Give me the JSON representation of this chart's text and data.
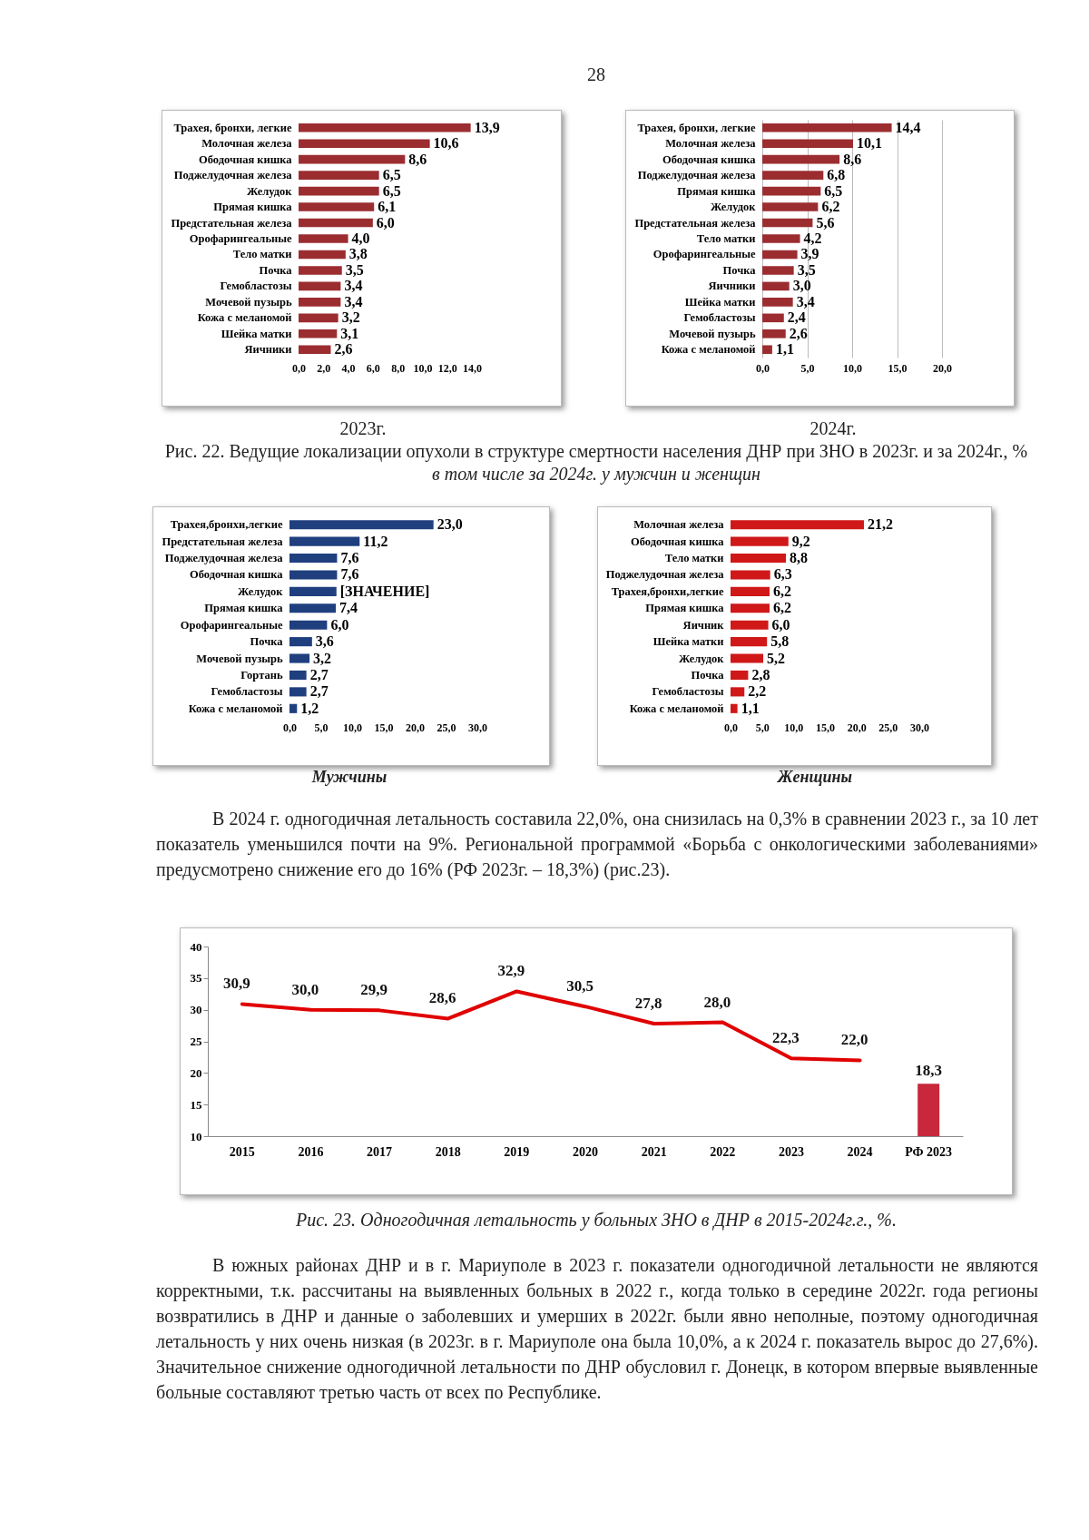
{
  "chart_data": [
    {
      "type": "bar",
      "orientation": "horizontal",
      "title": "2023г.",
      "color": "#9b2d30",
      "annotations": [
        "28",
        "Рис. 22. Ведущие локализации опухоли в структуре смертности населения ДНР при ЗНО в 2023г. и за 2024г., %",
        "в том числе за 2024г. у мужчин и женщин"
      ],
      "categories": [
        "Трахея, бронхи, легкие",
        "Молочная железа",
        "Ободочная кишка",
        "Поджелудочная железа",
        "Желудок",
        "Прямая кишка",
        "Предстательная железа",
        "Орофарингеальные",
        "Тело матки",
        "Почка",
        "Гемобластозы",
        "Мочевой пузырь",
        "Кожа с меланомой",
        "Шейка матки",
        "Яичники"
      ],
      "values": [
        13.9,
        10.6,
        8.6,
        6.5,
        6.5,
        6.1,
        6.0,
        4.0,
        3.8,
        3.5,
        3.4,
        3.4,
        3.2,
        3.1,
        2.6
      ],
      "value_labels": [
        "13,9",
        "10,6",
        "8,6",
        "6,5",
        "6,5",
        "6,1",
        "6,0",
        "4,0",
        "3,8",
        "3,5",
        "3,4",
        "3,4",
        "3,2",
        "3,1",
        "2,6"
      ],
      "xlim": [
        0,
        14
      ],
      "xticks": [
        {
          "value": 0,
          "label": "0,0"
        },
        {
          "value": 2,
          "label": "2,0"
        },
        {
          "value": 4,
          "label": "4,0"
        },
        {
          "value": 6,
          "label": "6,0"
        },
        {
          "value": 8,
          "label": "8,0"
        },
        {
          "value": 10,
          "label": "10,0"
        },
        {
          "value": 12,
          "label": "12,0"
        },
        {
          "value": 14,
          "label": "14,0"
        }
      ]
    },
    {
      "type": "bar",
      "orientation": "horizontal",
      "title": "2024г.",
      "color": "#9b2d30",
      "grid": "x",
      "categories": [
        "Трахея, бронхи, легкие",
        "Молочная железа",
        "Ободочная кишка",
        "Поджелудочная железа",
        "Прямая кишка",
        "Желудок",
        "Предстательная железа",
        "Тело матки",
        "Орофарингеальные",
        "Почка",
        "Яичники",
        "Шейка матки",
        "Гемобластозы",
        "Мочевой пузырь",
        "Кожа с меланомой"
      ],
      "values": [
        14.4,
        10.1,
        8.6,
        6.8,
        6.5,
        6.2,
        5.6,
        4.2,
        3.9,
        3.5,
        3.0,
        3.4,
        2.4,
        2.6,
        1.1
      ],
      "value_labels": [
        "14,4",
        "10,1",
        "8,6",
        "6,8",
        "6,5",
        "6,2",
        "5,6",
        "4,2",
        "3,9",
        "3,5",
        "3,0",
        "3,4",
        "2,4",
        "2,6",
        "1,1"
      ],
      "xlim": [
        0,
        20
      ],
      "xticks": [
        {
          "value": 0,
          "label": "0,0"
        },
        {
          "value": 5,
          "label": "5,0"
        },
        {
          "value": 10,
          "label": "10,0"
        },
        {
          "value": 15,
          "label": "15,0"
        },
        {
          "value": 20,
          "label": "20,0"
        }
      ]
    },
    {
      "type": "bar",
      "orientation": "horizontal",
      "title": "Мужчины",
      "color": "#1f3f7f",
      "categories": [
        "Трахея,бронхи,легкие",
        "Предстательная железа",
        "Поджелудочная железа",
        "Ободочная кишка",
        "Желудок",
        "Прямая кишка",
        "Орофарингеальные",
        "Почка",
        "Мочевой пузырь",
        "Гортань",
        "Гемобластозы",
        "Кожа с меланомой"
      ],
      "values": [
        23.0,
        11.2,
        7.6,
        7.6,
        7.5,
        7.4,
        6.0,
        3.6,
        3.2,
        2.7,
        2.7,
        1.2
      ],
      "value_labels": [
        "23,0",
        "11,2",
        "7,6",
        "7,6",
        "[ЗНАЧЕНИЕ]",
        "7,4",
        "6,0",
        "3,6",
        "3,2",
        "2,7",
        "2,7",
        "1,2"
      ],
      "xlim": [
        0,
        30
      ],
      "xticks": [
        {
          "value": 0,
          "label": "0,0"
        },
        {
          "value": 5,
          "label": "5,0"
        },
        {
          "value": 10,
          "label": "10,0"
        },
        {
          "value": 15,
          "label": "15,0"
        },
        {
          "value": 20,
          "label": "20,0"
        },
        {
          "value": 25,
          "label": "25,0"
        },
        {
          "value": 30,
          "label": "30,0"
        }
      ]
    },
    {
      "type": "bar",
      "orientation": "horizontal",
      "title": "Женщины",
      "color": "#d01818",
      "categories": [
        "Молочная железа",
        "Ободочная кишка",
        "Тело матки",
        "Поджелудочная железа",
        "Трахея,бронхи,легкие",
        "Прямая кишка",
        "Яичник",
        "Шейка матки",
        "Желудок",
        "Почка",
        "Гемобластозы",
        "Кожа с меланомой"
      ],
      "values": [
        21.2,
        9.2,
        8.8,
        6.3,
        6.2,
        6.2,
        6.0,
        5.8,
        5.2,
        2.8,
        2.2,
        1.1
      ],
      "value_labels": [
        "21,2",
        "9,2",
        "8,8",
        "6,3",
        "6,2",
        "6,2",
        "6,0",
        "5,8",
        "5,2",
        "2,8",
        "2,2",
        "1,1"
      ],
      "xlim": [
        0,
        30
      ],
      "xticks": [
        {
          "value": 0,
          "label": "0,0"
        },
        {
          "value": 5,
          "label": "5,0"
        },
        {
          "value": 10,
          "label": "10,0"
        },
        {
          "value": 15,
          "label": "15,0"
        },
        {
          "value": 20,
          "label": "20,0"
        },
        {
          "value": 25,
          "label": "25,0"
        },
        {
          "value": 30,
          "label": "30,0"
        }
      ]
    },
    {
      "type": "line",
      "annotations": [
        "В 2024 г. одногодичная летальность составила 22,0%, она снизилась на 0,3% в сравнении 2023 г., за 10 лет показатель уменьшился почти на 9%. Региональной программой «Борьба с онкологическими заболеваниями» предусмотрено снижение его до 16% (РФ 2023г. – 18,3%) (рис.23).",
        "Рис. 23. Одногодичная летальность у больных ЗНО в ДНР в 2015-2024г.г., %.",
        "В южных районах ДНР и в г. Мариуполе в 2023 г. показатели одногодичной летальности не являются корректными, т.к. рассчитаны на выявленных больных в 2022 г., когда только в середине 2022г. года регионы возвратились в ДНР и данные о заболевших и умерших в 2022г. были явно неполные, поэтому одногодичная летальность у них очень низкая (в 2023г. в г. Мариуполе она была 10,0%, а к 2024 г. показатель вырос до 27,6%). Значительное снижение одногодичной летальности по ДНР обусловил г. Донецк, в котором впервые выявленные больные составляют третью часть от всех по Республике."
      ],
      "categories": [
        "2015",
        "2016",
        "2017",
        "2018",
        "2019",
        "2020",
        "2021",
        "2022",
        "2023",
        "2024",
        "РФ 2023"
      ],
      "series": [
        {
          "type": "line",
          "color": "#e00000",
          "values": [
            30.9,
            30.0,
            29.9,
            28.6,
            32.9,
            30.5,
            27.8,
            28.0,
            22.3,
            22.0,
            null
          ],
          "value_labels": [
            "30,9",
            "30,0",
            "29,9",
            "28,6",
            "32,9",
            "30,5",
            "27,8",
            "28,0",
            "22,3",
            "22,0",
            null
          ]
        },
        {
          "type": "bar",
          "color": "#c8283c",
          "values": [
            null,
            null,
            null,
            null,
            null,
            null,
            null,
            null,
            null,
            null,
            18.3
          ],
          "value_labels": [
            null,
            null,
            null,
            null,
            null,
            null,
            null,
            null,
            null,
            null,
            "18,3"
          ]
        }
      ],
      "ylim": [
        10,
        40
      ],
      "yticks": [
        10,
        15,
        20,
        25,
        30,
        35,
        40
      ]
    }
  ]
}
